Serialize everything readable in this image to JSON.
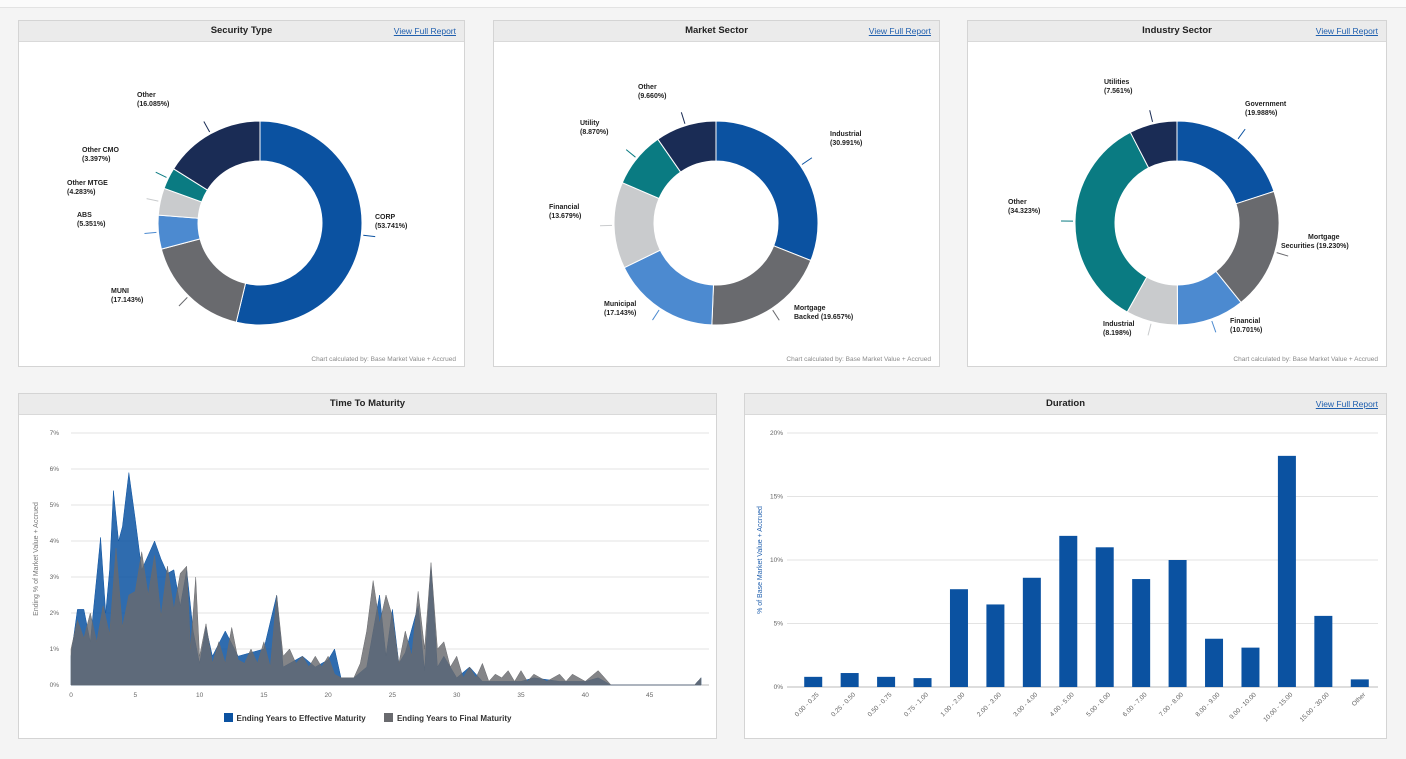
{
  "colors": {
    "blue": "#0b52a1",
    "gray": "#696a6e",
    "teal": "#0a7b82",
    "navy": "#1a2c55",
    "light": "#c9cbcd",
    "lightblue": "#4c8ad0",
    "link": "#1f5fae"
  },
  "panels": {
    "security_type": {
      "title": "Security Type",
      "link": "View Full Report",
      "note": "Chart calculated by: Base Market Value + Accrued"
    },
    "market_sector": {
      "title": "Market Sector",
      "link": "View Full Report",
      "note": "Chart calculated by: Base Market Value + Accrued"
    },
    "industry_sector": {
      "title": "Industry Sector",
      "link": "View Full Report",
      "note": "Chart calculated by: Base Market Value + Accrued"
    },
    "time_to_maturity": {
      "title": "Time To Maturity"
    },
    "duration": {
      "title": "Duration",
      "link": "View Full Report"
    }
  },
  "chart_data": [
    {
      "id": "security_type",
      "type": "pie",
      "donut": true,
      "title": "Security Type",
      "slices": [
        {
          "label": "CORP",
          "value": 53.741,
          "color": "blue"
        },
        {
          "label": "MUNI",
          "value": 17.143,
          "color": "gray"
        },
        {
          "label": "ABS",
          "value": 5.351,
          "color": "lightblue"
        },
        {
          "label": "Other MTGE",
          "value": 4.283,
          "color": "light"
        },
        {
          "label": "Other CMO",
          "value": 3.397,
          "color": "teal"
        },
        {
          "label": "Other",
          "value": 16.085,
          "color": "navy"
        }
      ]
    },
    {
      "id": "market_sector",
      "type": "pie",
      "donut": true,
      "title": "Market Sector",
      "slices": [
        {
          "label": "Industrial",
          "value": 30.991,
          "color": "blue"
        },
        {
          "label": "Mortgage Backed",
          "value": 19.657,
          "color": "gray"
        },
        {
          "label": "Municipal",
          "value": 17.143,
          "color": "lightblue"
        },
        {
          "label": "Financial",
          "value": 13.679,
          "color": "light"
        },
        {
          "label": "Utility",
          "value": 8.87,
          "color": "teal"
        },
        {
          "label": "Other",
          "value": 9.66,
          "color": "navy"
        }
      ]
    },
    {
      "id": "industry_sector",
      "type": "pie",
      "donut": true,
      "title": "Industry Sector",
      "slices": [
        {
          "label": "Government",
          "value": 19.988,
          "color": "blue"
        },
        {
          "label": "Mortgage Securities",
          "value": 19.23,
          "color": "gray"
        },
        {
          "label": "Financial",
          "value": 10.701,
          "color": "lightblue"
        },
        {
          "label": "Industrial",
          "value": 8.198,
          "color": "light"
        },
        {
          "label": "Other",
          "value": 34.323,
          "color": "teal"
        },
        {
          "label": "Utilities",
          "value": 7.561,
          "color": "navy"
        }
      ]
    },
    {
      "id": "time_to_maturity",
      "type": "area",
      "title": "Time To Maturity",
      "ylabel": "Ending % of Market Value + Accrued",
      "xlim": [
        0,
        49
      ],
      "ylim": [
        0,
        7
      ],
      "yticks": [
        "0%",
        "1%",
        "2%",
        "3%",
        "4%",
        "5%",
        "6%",
        "7%"
      ],
      "xticks": [
        0,
        5,
        10,
        15,
        20,
        25,
        30,
        35,
        40,
        45
      ],
      "series": [
        {
          "name": "Ending Years to Effective Maturity",
          "color": "blue",
          "points": [
            [
              0,
              0.8
            ],
            [
              0.5,
              2.1
            ],
            [
              1,
              2.1
            ],
            [
              1.5,
              1.2
            ],
            [
              2,
              3
            ],
            [
              2.3,
              4.1
            ],
            [
              2.7,
              2
            ],
            [
              3,
              3.2
            ],
            [
              3.3,
              5.4
            ],
            [
              3.7,
              4
            ],
            [
              4,
              4.4
            ],
            [
              4.5,
              5.9
            ],
            [
              5,
              4.6
            ],
            [
              5.5,
              3.2
            ],
            [
              6,
              3.6
            ],
            [
              6.5,
              4
            ],
            [
              7,
              3.5
            ],
            [
              7.5,
              3.1
            ],
            [
              8,
              3.2
            ],
            [
              8.5,
              2.2
            ],
            [
              9,
              3.2
            ],
            [
              9.5,
              1.5
            ],
            [
              10,
              0.6
            ],
            [
              10.5,
              1.6
            ],
            [
              11,
              0.8
            ],
            [
              12,
              1.5
            ],
            [
              13,
              0.8
            ],
            [
              14,
              0.9
            ],
            [
              15,
              1
            ],
            [
              16,
              2.5
            ],
            [
              16.5,
              0.5
            ],
            [
              17,
              0.6
            ],
            [
              18,
              0.8
            ],
            [
              19,
              0.5
            ],
            [
              20,
              0.7
            ],
            [
              20.5,
              1
            ],
            [
              21,
              0.2
            ],
            [
              22,
              0.2
            ],
            [
              23,
              0.5
            ],
            [
              24,
              2.5
            ],
            [
              24.5,
              0.8
            ],
            [
              25,
              2.1
            ],
            [
              25.5,
              0.6
            ],
            [
              26,
              0.9
            ],
            [
              27,
              2.2
            ],
            [
              27.5,
              0.4
            ],
            [
              28,
              3.3
            ],
            [
              28.5,
              0.5
            ],
            [
              29,
              0.8
            ],
            [
              30,
              0.2
            ],
            [
              31,
              0.5
            ],
            [
              32,
              0.1
            ],
            [
              33,
              0.1
            ],
            [
              35,
              0.1
            ],
            [
              36,
              0.2
            ],
            [
              38,
              0.1
            ],
            [
              40,
              0.1
            ],
            [
              41,
              0.2
            ],
            [
              42,
              0
            ],
            [
              48.5,
              0
            ],
            [
              49,
              0.2
            ]
          ]
        },
        {
          "name": "Ending Years to Final Maturity",
          "color": "gray",
          "points": [
            [
              0,
              1
            ],
            [
              0.5,
              1.8
            ],
            [
              1,
              1.3
            ],
            [
              1.5,
              2
            ],
            [
              2,
              1.2
            ],
            [
              2.5,
              2.2
            ],
            [
              3,
              1.4
            ],
            [
              3.5,
              3.8
            ],
            [
              4,
              1.6
            ],
            [
              4.5,
              2.5
            ],
            [
              5,
              2.6
            ],
            [
              5.5,
              3.7
            ],
            [
              6,
              2.5
            ],
            [
              6.5,
              3.6
            ],
            [
              7,
              1.9
            ],
            [
              7.5,
              3.3
            ],
            [
              8,
              2.1
            ],
            [
              8.5,
              3.1
            ],
            [
              9,
              3.3
            ],
            [
              9.3,
              1
            ],
            [
              9.7,
              3
            ],
            [
              10,
              0.8
            ],
            [
              10.5,
              1.7
            ],
            [
              11,
              0.6
            ],
            [
              11.5,
              1.2
            ],
            [
              12,
              0.6
            ],
            [
              12.5,
              1.6
            ],
            [
              13,
              0.7
            ],
            [
              13.5,
              0.6
            ],
            [
              14,
              1
            ],
            [
              14.5,
              0.6
            ],
            [
              15,
              1.2
            ],
            [
              15.5,
              0.5
            ],
            [
              16,
              2.5
            ],
            [
              16.5,
              0.8
            ],
            [
              17,
              1
            ],
            [
              17.5,
              0.6
            ],
            [
              18,
              0.8
            ],
            [
              18.5,
              0.5
            ],
            [
              19,
              0.8
            ],
            [
              19.5,
              0.5
            ],
            [
              20,
              0.8
            ],
            [
              20.5,
              0.3
            ],
            [
              21,
              0.2
            ],
            [
              22,
              0.2
            ],
            [
              22.5,
              0.6
            ],
            [
              23,
              1.5
            ],
            [
              23.5,
              2.9
            ],
            [
              24,
              1.7
            ],
            [
              24.5,
              2.5
            ],
            [
              25,
              1.9
            ],
            [
              25.5,
              0.6
            ],
            [
              26,
              1.5
            ],
            [
              26.5,
              0.8
            ],
            [
              27,
              2.6
            ],
            [
              27.5,
              1
            ],
            [
              28,
              3.4
            ],
            [
              28.5,
              1
            ],
            [
              29,
              1.2
            ],
            [
              29.5,
              0.5
            ],
            [
              30,
              0.8
            ],
            [
              30.5,
              0.2
            ],
            [
              31,
              0.5
            ],
            [
              31.5,
              0.2
            ],
            [
              32,
              0.6
            ],
            [
              32.5,
              0.1
            ],
            [
              33,
              0.3
            ],
            [
              33.5,
              0.2
            ],
            [
              34,
              0.4
            ],
            [
              34.5,
              0.1
            ],
            [
              35,
              0.4
            ],
            [
              35.5,
              0.1
            ],
            [
              36,
              0.3
            ],
            [
              37,
              0.1
            ],
            [
              38,
              0.3
            ],
            [
              38.5,
              0.1
            ],
            [
              39,
              0.3
            ],
            [
              40,
              0.1
            ],
            [
              41,
              0.4
            ],
            [
              42,
              0
            ],
            [
              48.5,
              0
            ],
            [
              49,
              0.2
            ]
          ]
        }
      ]
    },
    {
      "id": "duration",
      "type": "bar",
      "title": "Duration",
      "ylabel": "% of Base Market Value + Accrued",
      "ylim": [
        0,
        20
      ],
      "yticks": [
        "0%",
        "5%",
        "10%",
        "15%",
        "20%"
      ],
      "categories": [
        "0.00 - 0.25",
        "0.25 - 0.50",
        "0.50 - 0.75",
        "0.75 - 1.00",
        "1.00 - 2.00",
        "2.00 - 3.00",
        "3.00 - 4.00",
        "4.00 - 5.00",
        "5.00 - 6.00",
        "6.00 - 7.00",
        "7.00 - 8.00",
        "8.00 - 9.00",
        "9.00 - 10.00",
        "10.00 - 15.00",
        "15.00 - 30.00",
        "Other"
      ],
      "values": [
        0.8,
        1.1,
        0.8,
        0.7,
        7.7,
        6.5,
        8.6,
        11.9,
        11,
        8.5,
        10,
        3.8,
        3.1,
        18.2,
        5.6,
        0.6
      ],
      "color": "blue"
    }
  ]
}
